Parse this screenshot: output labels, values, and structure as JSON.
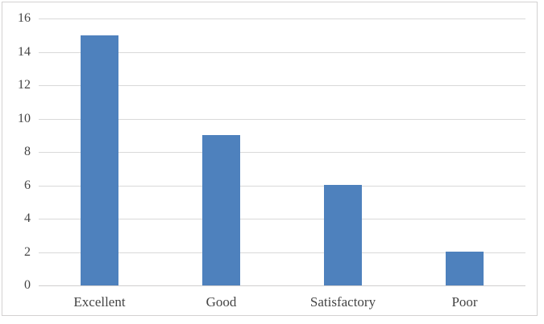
{
  "chart_data": {
    "type": "bar",
    "categories": [
      "Excellent",
      "Good",
      "Satisfactory",
      "Poor"
    ],
    "values": [
      15,
      9,
      6,
      2
    ],
    "title": "",
    "xlabel": "",
    "ylabel": "",
    "ylim": [
      0,
      16
    ],
    "yticks": [
      0,
      2,
      4,
      6,
      8,
      10,
      12,
      14,
      16
    ],
    "grid": "horizontal",
    "legend_position": "none",
    "bar_color": "#4e81bd",
    "gridline_color": "#d9d9d9",
    "axis_line_color": "#d0cece",
    "text_color": "#444444",
    "frame_border_color": "#d3d1d1",
    "background_color": "#ffffff"
  }
}
